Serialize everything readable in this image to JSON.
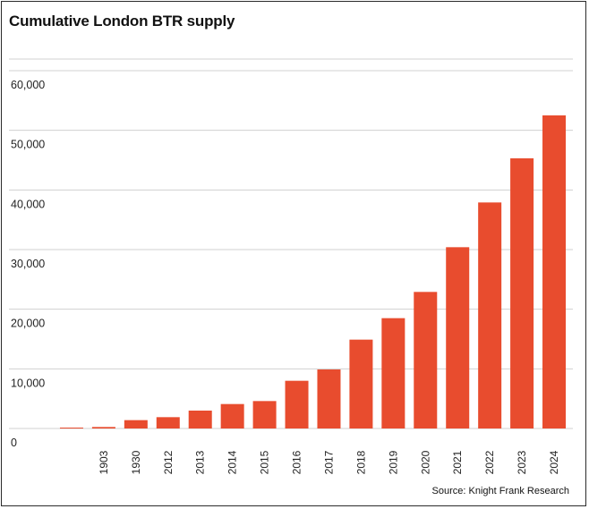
{
  "title": "Cumulative London BTR supply",
  "source": "Source: Knight Frank Research",
  "colors": {
    "bar": "#e84c2e",
    "grid": "#d0d0d0",
    "frame": "#2b2b2b"
  },
  "chart_data": {
    "type": "bar",
    "title": "Cumulative London BTR supply",
    "xlabel": "",
    "ylabel": "",
    "categories": [
      "",
      "1903",
      "1930",
      "2012",
      "2013",
      "2014",
      "2015",
      "2016",
      "2017",
      "2018",
      "2019",
      "2020",
      "2021",
      "2022",
      "2023",
      "2024"
    ],
    "values": [
      100,
      250,
      1400,
      1900,
      3000,
      4100,
      4600,
      8000,
      9900,
      14900,
      18500,
      22900,
      30400,
      37900,
      45300,
      52500
    ],
    "ylim": [
      0,
      60000
    ],
    "yticks": [
      0,
      10000,
      20000,
      30000,
      40000,
      50000,
      60000
    ],
    "ytick_labels": [
      "0",
      "10,000",
      "20,000",
      "30,000",
      "40,000",
      "50,000",
      "60,000"
    ],
    "grid": true,
    "legend": "none"
  }
}
